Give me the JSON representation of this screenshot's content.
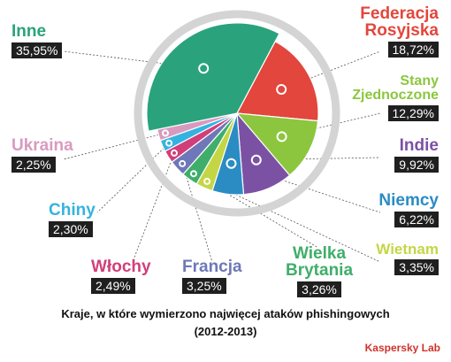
{
  "chart_data": {
    "type": "pie",
    "title": "Kraje, w które wymierzono najwięcej ataków phishingowych",
    "subtitle": "(2012-2013)",
    "categories": [
      "Inne",
      "Federacja Rosyjska",
      "Stany Zjednoczone",
      "Indie",
      "Niemcy",
      "Wietnam",
      "Wielka Brytania",
      "Francja",
      "Włochy",
      "Chiny",
      "Ukraina"
    ],
    "values": [
      35.95,
      18.72,
      12.29,
      9.92,
      6.22,
      3.35,
      3.26,
      3.25,
      2.49,
      2.3,
      2.25
    ],
    "value_labels": [
      "35,95%",
      "18,72%",
      "12,29%",
      "9,92%",
      "6,22%",
      "3,35%",
      "3,26%",
      "3,25%",
      "2,49%",
      "2,30%",
      "2,25%"
    ],
    "colors": [
      "#2aa37c",
      "#e3463c",
      "#8cc63e",
      "#7b52a3",
      "#2b8cc4",
      "#c4d645",
      "#3fae6a",
      "#6e78b8",
      "#d13f7a",
      "#35b3e0",
      "#d99ac0"
    ],
    "label_colors": [
      "#2aa37c",
      "#e3463c",
      "#8cc63e",
      "#7b52a3",
      "#2b8cc4",
      "#c4d645",
      "#3fae6a",
      "#6e78b8",
      "#d13f7a",
      "#35b3e0",
      "#d99ac0"
    ]
  },
  "labels": {
    "inne": "Inne",
    "rosja_1": "Federacja",
    "rosja_2": "Rosyjska",
    "usa_1": "Stany",
    "usa_2": "Zjednoczone",
    "indie": "Indie",
    "niemcy": "Niemcy",
    "wietnam": "Wietnam",
    "wb_1": "Wielka",
    "wb_2": "Brytania",
    "francja": "Francja",
    "wlochy": "Włochy",
    "chiny": "Chiny",
    "ukraina": "Ukraina"
  },
  "caption": {
    "line1": "Kraje, w które wymierzono najwięcej ataków phishingowych",
    "line2": "(2012-2013)"
  },
  "brand": "Kaspersky Lab"
}
